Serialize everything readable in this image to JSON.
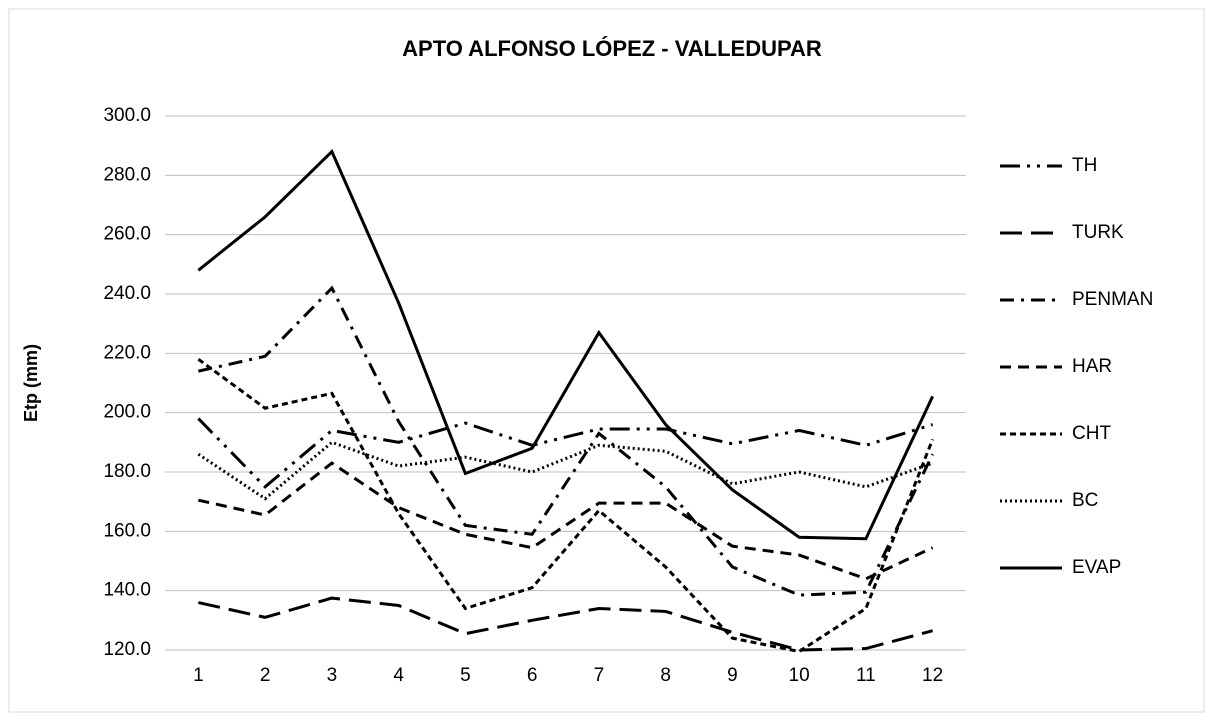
{
  "chart_data": {
    "type": "line",
    "title": "APTO ALFONSO LÓPEZ - VALLEDUPAR",
    "y_label": "Etp (mm)",
    "categories": [
      "1",
      "2",
      "3",
      "4",
      "5",
      "6",
      "7",
      "8",
      "9",
      "10",
      "11",
      "12"
    ],
    "ylim": [
      120,
      300
    ],
    "yticks": [
      {
        "value": 120,
        "label": "120.0"
      },
      {
        "value": 140,
        "label": "140.0"
      },
      {
        "value": 160,
        "label": "160.0"
      },
      {
        "value": 180,
        "label": "180.0"
      },
      {
        "value": 200,
        "label": "200.0"
      },
      {
        "value": 220,
        "label": "220.0"
      },
      {
        "value": 240,
        "label": "240.0"
      },
      {
        "value": 260,
        "label": "260.0"
      },
      {
        "value": 280,
        "label": "280.0"
      },
      {
        "value": 300,
        "label": "300.0"
      }
    ],
    "grid": true,
    "legend": "right",
    "series": [
      {
        "name": "TH",
        "color": "#000000",
        "dash": "20 7 3 7 3 7",
        "values": [
          198,
          175,
          194,
          190,
          196.5,
          189,
          194.5,
          194.5,
          189.5,
          194,
          189,
          196
        ]
      },
      {
        "name": "TURK",
        "color": "#000000",
        "dash": "22 9",
        "values": [
          136,
          131,
          137.5,
          135,
          125.5,
          130,
          134,
          133,
          126,
          120,
          120.5,
          126.5
        ]
      },
      {
        "name": "PENMAN",
        "color": "#000000",
        "dash": "14 7 3 7",
        "values": [
          214,
          219,
          242,
          197,
          162,
          159,
          193,
          175,
          148,
          138.5,
          139.5,
          186
        ]
      },
      {
        "name": "HAR",
        "color": "#000000",
        "dash": "11 7",
        "values": [
          170.5,
          165.5,
          183,
          168,
          159,
          154.5,
          169.5,
          169.5,
          155,
          152,
          144,
          154.5
        ]
      },
      {
        "name": "CHT",
        "color": "#000000",
        "dash": "6 4",
        "values": [
          218,
          201.5,
          206.5,
          166,
          134,
          141,
          167,
          148,
          124,
          119.5,
          134,
          191
        ]
      },
      {
        "name": "BC",
        "color": "#000000",
        "dash": "2 3",
        "values": [
          186,
          171,
          190,
          182,
          185,
          180,
          189,
          187,
          176,
          180,
          175,
          183
        ]
      },
      {
        "name": "EVAP",
        "color": "#000000",
        "dash": "none",
        "values": [
          248,
          266,
          288,
          237,
          179.5,
          188,
          227,
          196,
          174,
          158,
          157.5,
          205.5
        ]
      }
    ]
  }
}
